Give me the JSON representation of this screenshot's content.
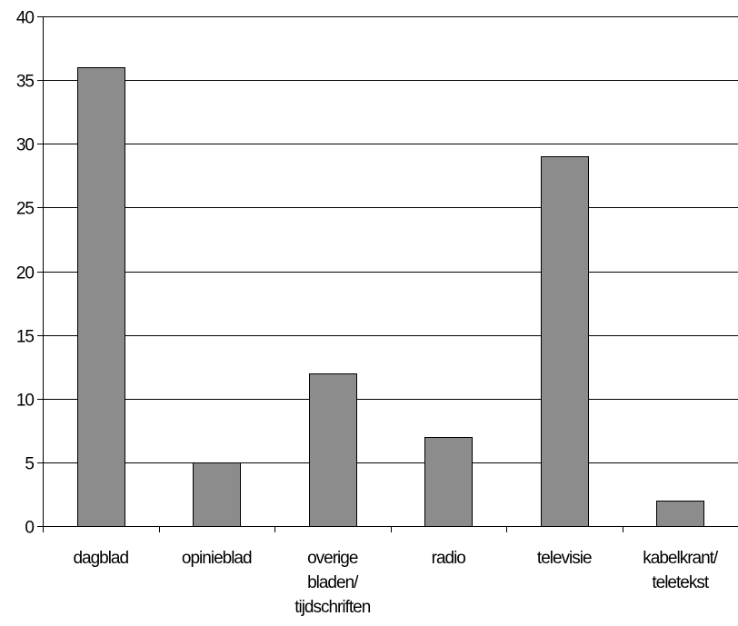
{
  "chart_data": {
    "type": "bar",
    "title": "",
    "xlabel": "",
    "ylabel": "",
    "ylim": [
      0,
      40
    ],
    "yticks": [
      0,
      5,
      10,
      15,
      20,
      25,
      30,
      35,
      40
    ],
    "grid": true,
    "legend": "none",
    "categories": [
      [
        "dagblad"
      ],
      [
        "opinieblad"
      ],
      [
        "overige",
        "bladen/",
        "tijdschriften"
      ],
      [
        "radio"
      ],
      [
        "televisie"
      ],
      [
        "kabelkrant/",
        "teletekst"
      ]
    ],
    "values": [
      36,
      5,
      12,
      7,
      29,
      2
    ],
    "colors": {
      "bar_fill": "#8c8c8c",
      "bar_stroke": "#000000",
      "grid": "#000000",
      "background": "#ffffff"
    }
  }
}
